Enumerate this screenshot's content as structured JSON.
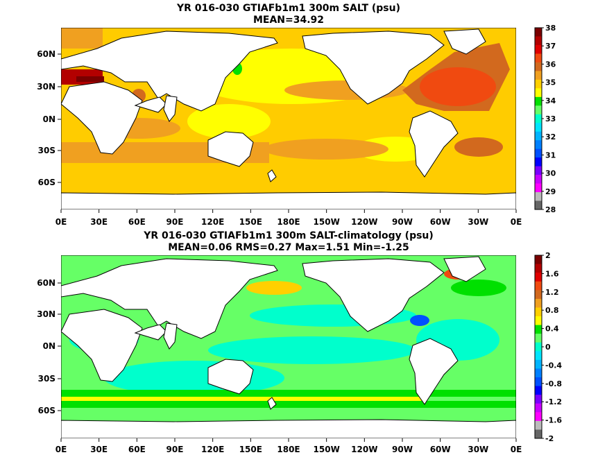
{
  "panels": [
    {
      "title": "YR 016-030 GTIAFb1m1 300m SALT (psu)",
      "subtitle": "MEAN=34.92",
      "x_ticks": [
        "0E",
        "30E",
        "60E",
        "90E",
        "120E",
        "150E",
        "180E",
        "150W",
        "120W",
        "90W",
        "60W",
        "30W",
        "0E"
      ],
      "y_ticks": [
        "60N",
        "30N",
        "0N",
        "30S",
        "60S"
      ],
      "colorbar_labels": [
        "38",
        "37",
        "36",
        "35",
        "34",
        "33",
        "32",
        "31",
        "30",
        "29",
        "28"
      ],
      "colorbar_colors": [
        "#7a0000",
        "#b30000",
        "#e00000",
        "#f04a10",
        "#d2691e",
        "#f0a020",
        "#ffd000",
        "#ffff00",
        "#00e000",
        "#66ff66",
        "#00ffcc",
        "#00e5ff",
        "#00b4ff",
        "#0080ff",
        "#0050ff",
        "#0000ff",
        "#7a00ff",
        "#c800ff",
        "#ff00ff",
        "#bbbbbb",
        "#666666"
      ],
      "base_color": "#ffcc00"
    },
    {
      "title": "YR 016-030 GTIAFb1m1 300m SALT-climatology (psu)",
      "subtitle": "MEAN=0.06   RMS=0.27   Max=1.51   Min=-1.25",
      "x_ticks": [
        "0E",
        "30E",
        "60E",
        "90E",
        "120E",
        "150E",
        "180E",
        "150W",
        "120W",
        "90W",
        "60W",
        "30W",
        "0E"
      ],
      "y_ticks": [
        "60N",
        "30N",
        "0N",
        "30S",
        "60S"
      ],
      "colorbar_labels": [
        "2",
        "1.6",
        "1.2",
        "0.8",
        "0.4",
        "0",
        "-0.4",
        "-0.8",
        "-1.2",
        "-1.6",
        "-2"
      ],
      "colorbar_colors": [
        "#7a0000",
        "#b30000",
        "#e00000",
        "#f04a10",
        "#d2691e",
        "#f0a020",
        "#ffd000",
        "#ffff00",
        "#00e000",
        "#66ff66",
        "#00ffcc",
        "#00e5ff",
        "#00b4ff",
        "#0080ff",
        "#0050ff",
        "#0000ff",
        "#7a00ff",
        "#c800ff",
        "#ff00ff",
        "#bbbbbb",
        "#666666"
      ],
      "base_color": "#66ff66"
    }
  ]
}
